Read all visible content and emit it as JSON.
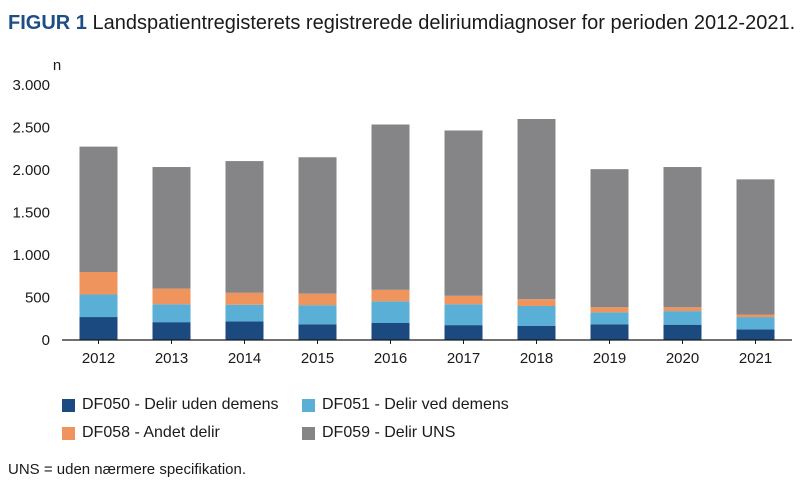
{
  "figure": {
    "label": "FIGUR 1",
    "title": "Landspatientregisterets registrerede deliriumdiagnoser for perioden 2012-2021."
  },
  "footnote": "UNS = uden nærmere specifikation.",
  "chart_data": {
    "type": "bar",
    "stacked": true,
    "y_unit_label": "n",
    "ylim": [
      0,
      3000
    ],
    "y_ticks": [
      0,
      500,
      1000,
      1500,
      2000,
      2500,
      3000
    ],
    "y_tick_labels": [
      "0",
      "500",
      "1.000",
      "1.500",
      "2.000",
      "2.500",
      "3.000"
    ],
    "grid": false,
    "legend_position": "bottom",
    "categories": [
      "2012",
      "2013",
      "2014",
      "2015",
      "2016",
      "2017",
      "2018",
      "2019",
      "2020",
      "2021"
    ],
    "series": [
      {
        "name": "DF050 - Delir uden demens",
        "color": "#1a4a80",
        "values": [
          270,
          210,
          220,
          185,
          200,
          175,
          165,
          185,
          180,
          125
        ]
      },
      {
        "name": "DF051 - Delir ved demens",
        "color": "#5aafd6",
        "values": [
          265,
          210,
          195,
          225,
          255,
          245,
          235,
          140,
          160,
          145
        ]
      },
      {
        "name": "DF058 - Andet delir",
        "color": "#ef945d",
        "values": [
          265,
          185,
          140,
          135,
          135,
          100,
          80,
          60,
          45,
          30
        ]
      },
      {
        "name": "DF059 - Delir UNS",
        "color": "#858588",
        "values": [
          1475,
          1430,
          1550,
          1605,
          1945,
          1945,
          2120,
          1625,
          1650,
          1590
        ]
      }
    ]
  }
}
